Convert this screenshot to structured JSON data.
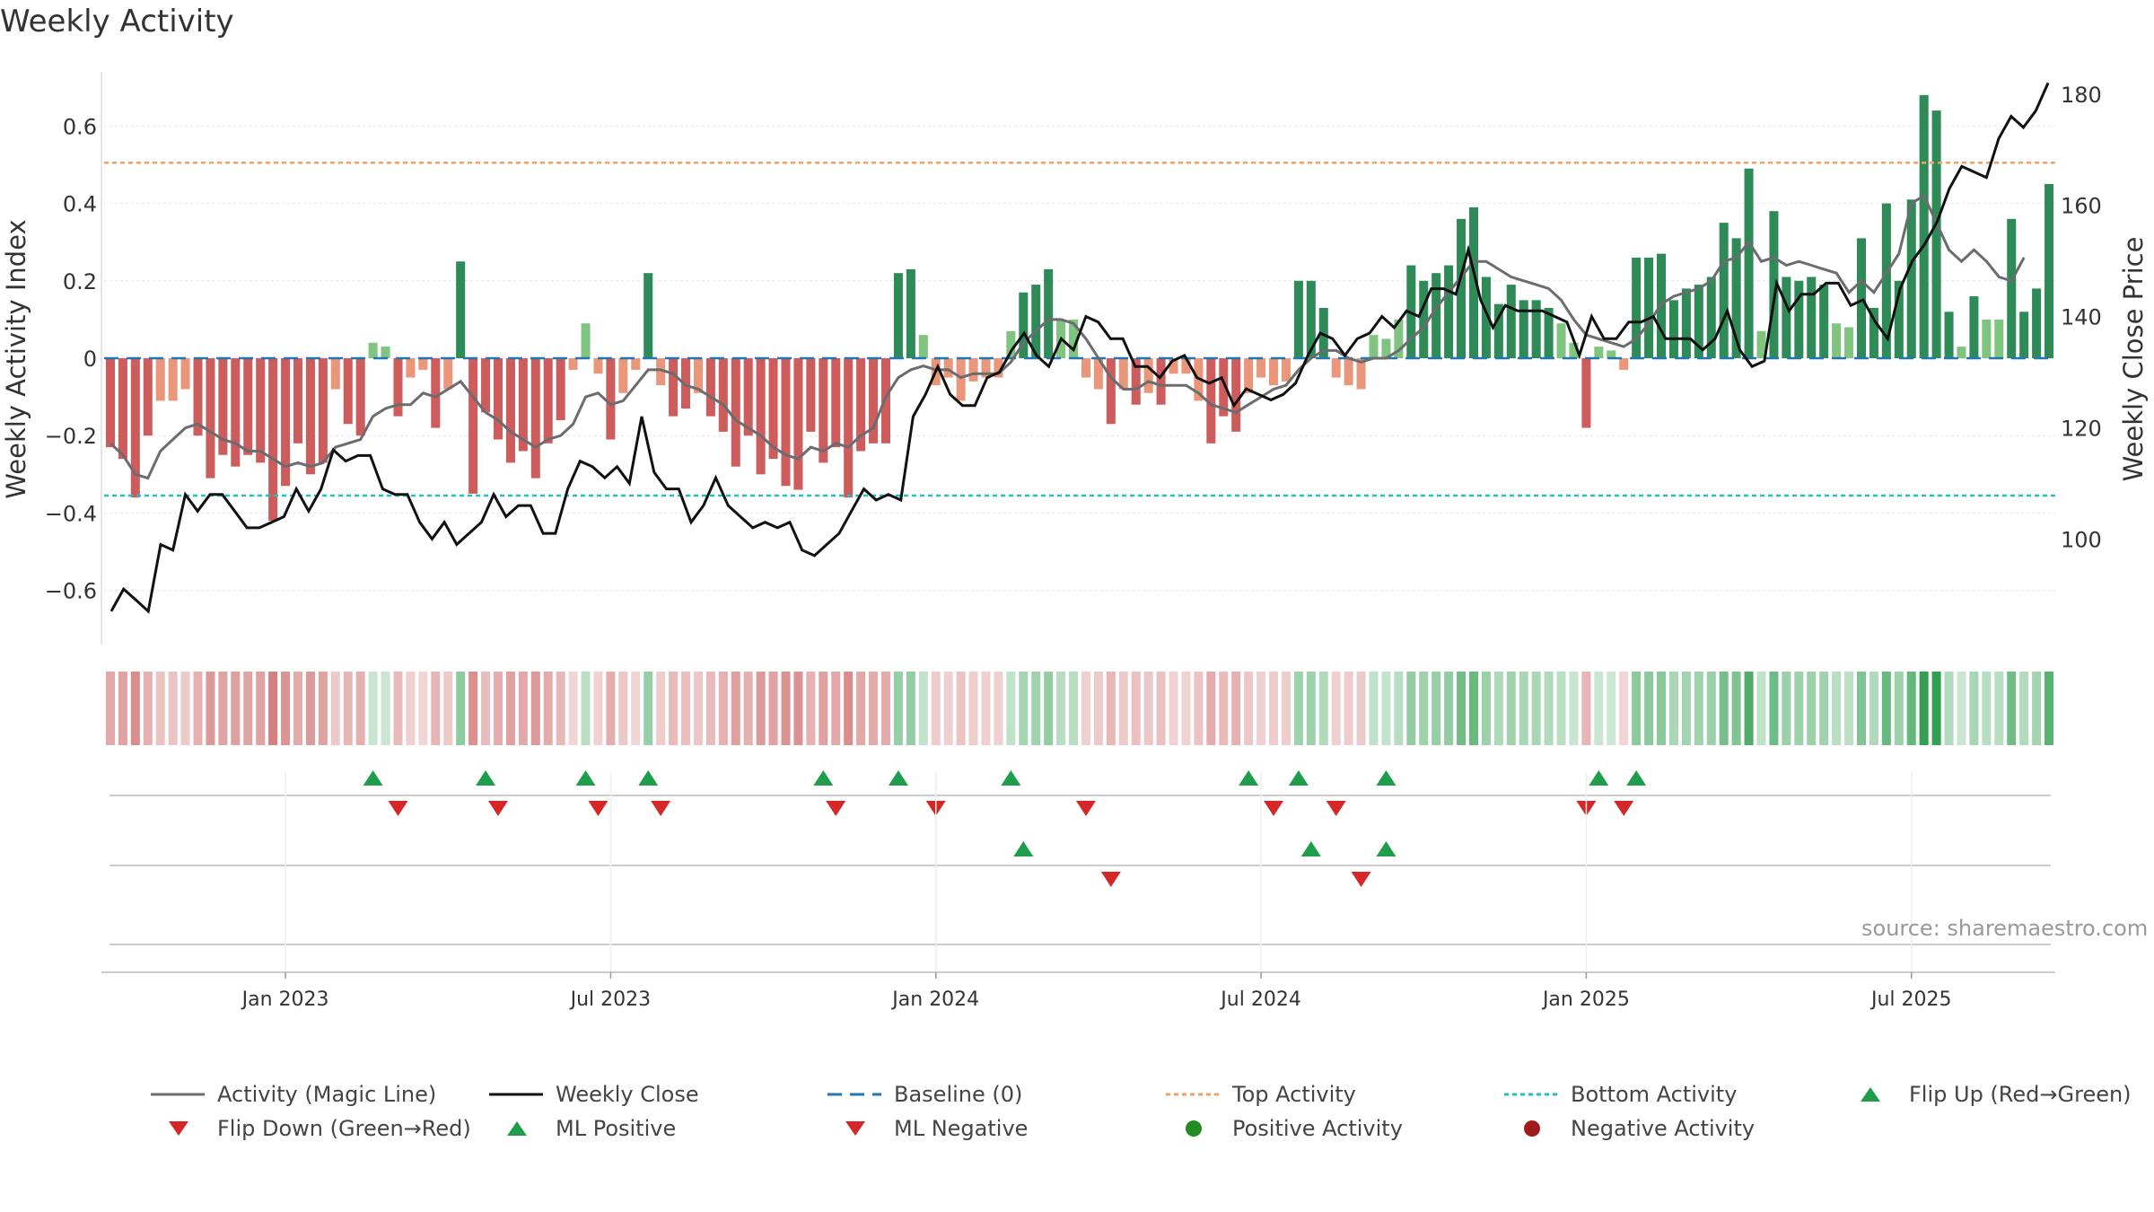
{
  "chart_data": {
    "type": "bar",
    "title": "Weekly Activity",
    "ylabel_left": "Weekly Activity Index",
    "ylabel_right": "Weekly Close Price",
    "ylim_left": [
      -0.74,
      0.74
    ],
    "yticks_left": [
      -0.6,
      -0.4,
      -0.2,
      0,
      0.2,
      0.4,
      0.6
    ],
    "ytick_labels_left": [
      "−0.6",
      "−0.4",
      "−0.2",
      "0",
      "0.2",
      "0.4",
      "0.6"
    ],
    "ylim_right": [
      81,
      184
    ],
    "yticks_right": [
      100,
      120,
      140,
      160,
      180
    ],
    "ytick_labels_right": [
      "100",
      "120",
      "140",
      "160",
      "180"
    ],
    "x_weeks": 156,
    "x_ticks": [
      {
        "label": "Jan 2023",
        "week": 14.5
      },
      {
        "label": "Jul 2023",
        "week": 40.5
      },
      {
        "label": "Jan 2024",
        "week": 66.5
      },
      {
        "label": "Jul 2024",
        "week": 92.5
      },
      {
        "label": "Jan 2025",
        "week": 118.5
      },
      {
        "label": "Jul 2025",
        "week": 144.5
      }
    ],
    "top_activity": 0.505,
    "bottom_activity": -0.355,
    "baseline": 0,
    "activity": [
      -0.23,
      -0.26,
      -0.36,
      -0.2,
      -0.11,
      -0.11,
      -0.08,
      -0.2,
      -0.31,
      -0.25,
      -0.28,
      -0.25,
      -0.27,
      -0.42,
      -0.33,
      -0.22,
      -0.3,
      -0.27,
      -0.08,
      -0.17,
      -0.2,
      0.04,
      0.03,
      -0.15,
      -0.05,
      -0.03,
      -0.18,
      -0.08,
      0.25,
      -0.35,
      -0.14,
      -0.21,
      -0.27,
      -0.24,
      -0.31,
      -0.22,
      -0.16,
      -0.03,
      0.09,
      -0.04,
      -0.21,
      -0.09,
      -0.03,
      0.22,
      -0.07,
      -0.15,
      -0.13,
      -0.09,
      -0.15,
      -0.19,
      -0.28,
      -0.2,
      -0.3,
      -0.26,
      -0.33,
      -0.34,
      -0.19,
      -0.27,
      -0.23,
      -0.36,
      -0.24,
      -0.22,
      -0.22,
      0.22,
      0.23,
      0.06,
      -0.07,
      -0.05,
      -0.11,
      -0.06,
      -0.05,
      -0.05,
      0.07,
      0.17,
      0.19,
      0.23,
      0.1,
      0.1,
      -0.05,
      -0.08,
      -0.17,
      -0.08,
      -0.12,
      -0.09,
      -0.12,
      -0.04,
      -0.04,
      -0.11,
      -0.22,
      -0.15,
      -0.19,
      -0.09,
      -0.05,
      -0.07,
      -0.06,
      0.2,
      0.2,
      0.13,
      -0.05,
      -0.07,
      -0.08,
      0.06,
      0.05,
      0.1,
      0.24,
      0.2,
      0.22,
      0.24,
      0.36,
      0.39,
      0.21,
      0.14,
      0.19,
      0.15,
      0.15,
      0.13,
      0.09,
      0.04,
      -0.18,
      0.03,
      0.02,
      -0.03,
      0.26,
      0.26,
      0.27,
      0.15,
      0.18,
      0.19,
      0.21,
      0.35,
      0.31,
      0.49,
      0.07,
      0.38,
      0.21,
      0.2,
      0.21,
      0.19,
      0.09,
      0.08,
      0.31,
      0.13,
      0.4,
      0.2,
      0.41,
      0.68,
      0.64,
      0.12,
      0.03,
      0.16,
      0.1,
      0.1,
      0.36,
      0.12,
      0.18,
      0.45
    ],
    "magic_line": [
      -0.22,
      -0.25,
      -0.3,
      -0.31,
      -0.24,
      -0.21,
      -0.18,
      -0.17,
      -0.19,
      -0.21,
      -0.22,
      -0.24,
      -0.24,
      -0.26,
      -0.28,
      -0.27,
      -0.28,
      -0.27,
      -0.23,
      -0.22,
      -0.21,
      -0.15,
      -0.13,
      -0.12,
      -0.12,
      -0.09,
      -0.1,
      -0.08,
      -0.06,
      -0.1,
      -0.14,
      -0.16,
      -0.19,
      -0.21,
      -0.23,
      -0.21,
      -0.2,
      -0.17,
      -0.1,
      -0.09,
      -0.12,
      -0.11,
      -0.07,
      -0.03,
      -0.03,
      -0.04,
      -0.07,
      -0.08,
      -0.1,
      -0.12,
      -0.16,
      -0.18,
      -0.2,
      -0.23,
      -0.25,
      -0.26,
      -0.23,
      -0.24,
      -0.22,
      -0.23,
      -0.2,
      -0.18,
      -0.1,
      -0.05,
      -0.03,
      -0.02,
      -0.03,
      -0.03,
      -0.05,
      -0.04,
      -0.04,
      -0.04,
      -0.01,
      0.04,
      0.07,
      0.1,
      0.1,
      0.09,
      0.05,
      0.0,
      -0.05,
      -0.08,
      -0.08,
      -0.06,
      -0.07,
      -0.07,
      -0.07,
      -0.09,
      -0.12,
      -0.13,
      -0.14,
      -0.12,
      -0.1,
      -0.08,
      -0.07,
      -0.03,
      0.0,
      0.02,
      0.02,
      0.0,
      -0.01,
      0.0,
      0.0,
      0.02,
      0.05,
      0.08,
      0.13,
      0.17,
      0.21,
      0.25,
      0.25,
      0.23,
      0.21,
      0.2,
      0.19,
      0.18,
      0.15,
      0.1,
      0.06,
      0.05,
      0.04,
      0.03,
      0.05,
      0.09,
      0.14,
      0.16,
      0.17,
      0.18,
      0.2,
      0.25,
      0.26,
      0.3,
      0.25,
      0.26,
      0.24,
      0.25,
      0.24,
      0.23,
      0.22,
      0.17,
      0.2,
      0.17,
      0.22,
      0.27,
      0.4,
      0.42,
      0.35,
      0.28,
      0.25,
      0.28,
      0.25,
      0.21,
      0.2,
      0.26
    ],
    "weekly_close": [
      87,
      91,
      89,
      87,
      99,
      98,
      108,
      105,
      108,
      108,
      105,
      102,
      102,
      103,
      104,
      109,
      105,
      109,
      116,
      114,
      115,
      115,
      109,
      108,
      108,
      103,
      100,
      103,
      99,
      101,
      103,
      108,
      104,
      106,
      106,
      101,
      101,
      109,
      114,
      113,
      111,
      113,
      110,
      122,
      112,
      109,
      109,
      103,
      106,
      111,
      106,
      104,
      102,
      103,
      102,
      103,
      98,
      97,
      99,
      101,
      105,
      109,
      107,
      108,
      107,
      122,
      126,
      131,
      126,
      124,
      124,
      129,
      130,
      134,
      137,
      133,
      131,
      136,
      134,
      140,
      139,
      136,
      136,
      131,
      131,
      129,
      132,
      133,
      129,
      128,
      129,
      124,
      127,
      126,
      125,
      126,
      128,
      133,
      137,
      136,
      133,
      136,
      137,
      140,
      138,
      141,
      140,
      145,
      145,
      144,
      152,
      143,
      138,
      142,
      141,
      141,
      141,
      140,
      139,
      133,
      140,
      136,
      136,
      139,
      139,
      140,
      136,
      136,
      136,
      134,
      136,
      141,
      134,
      131,
      132,
      146,
      141,
      144,
      144,
      146,
      146,
      142,
      143,
      139,
      136,
      145,
      150,
      153,
      157,
      163,
      167,
      166,
      165,
      172,
      176,
      174,
      177,
      182
    ]
  },
  "flip_up_weeks": [
    21,
    30,
    38,
    43,
    57,
    63,
    72,
    91,
    95,
    102,
    119,
    122
  ],
  "flip_down_weeks": [
    23,
    31,
    39,
    44,
    58,
    66,
    78,
    93,
    98,
    118,
    121
  ],
  "ml_positive_weeks": [
    73,
    96,
    102
  ],
  "ml_negative_weeks": [
    80,
    100
  ],
  "source": "source: sharemaestro.com",
  "legend": {
    "magic_line": "Activity (Magic Line)",
    "weekly_close": "Weekly Close",
    "baseline": "Baseline (0)",
    "top_activity": "Top Activity",
    "bottom_activity": "Bottom Activity",
    "flip_up": "Flip Up (Red→Green)",
    "flip_down": "Flip Down (Green→Red)",
    "ml_positive": "ML Positive",
    "ml_negative": "ML Negative",
    "positive_activity": "Positive Activity",
    "negative_activity": "Negative Activity"
  },
  "colors": {
    "green_dark": "#2e8b57",
    "green_light": "#7fc47f",
    "red_dark": "#cd5c5c",
    "red_light": "#e9967a",
    "magic_line": "#6b6b70",
    "close": "#111111",
    "baseline": "#1f77b4",
    "top": "#f0a060",
    "bottom": "#20c0c8",
    "marker_green": "#1e9e4a",
    "marker_red": "#d62728",
    "dot_green": "#228b22",
    "dot_red": "#a01c1c"
  }
}
